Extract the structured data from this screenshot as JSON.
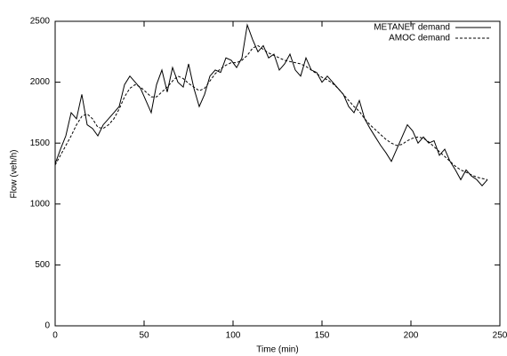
{
  "chart_data": {
    "type": "line",
    "xlabel": "Time (min)",
    "ylabel": "Flow (veh/h)",
    "x": [
      0,
      3,
      6,
      9,
      12,
      15,
      18,
      21,
      24,
      27,
      30,
      33,
      36,
      39,
      42,
      45,
      48,
      51,
      54,
      57,
      60,
      63,
      66,
      69,
      72,
      75,
      78,
      81,
      84,
      87,
      90,
      93,
      96,
      99,
      102,
      105,
      108,
      111,
      114,
      117,
      120,
      123,
      126,
      129,
      132,
      135,
      138,
      141,
      144,
      147,
      150,
      153,
      156,
      159,
      162,
      165,
      168,
      171,
      174,
      177,
      180,
      183,
      186,
      189,
      192,
      195,
      198,
      201,
      204,
      207,
      210,
      213,
      216,
      219,
      222,
      225,
      228,
      231,
      234,
      237,
      240,
      243
    ],
    "series": [
      {
        "name": "METANET demand",
        "color": "#000000",
        "line_style": "solid",
        "values": [
          1330,
          1450,
          1560,
          1750,
          1700,
          1900,
          1650,
          1620,
          1560,
          1650,
          1700,
          1750,
          1800,
          1980,
          2050,
          2000,
          1950,
          1850,
          1750,
          1980,
          2100,
          1920,
          2120,
          2000,
          1960,
          2150,
          1950,
          1800,
          1900,
          2050,
          2100,
          2080,
          2200,
          2180,
          2120,
          2200,
          2470,
          2350,
          2250,
          2300,
          2200,
          2230,
          2100,
          2150,
          2230,
          2100,
          2050,
          2200,
          2100,
          2080,
          2000,
          2050,
          2000,
          1950,
          1900,
          1800,
          1750,
          1850,
          1700,
          1620,
          1550,
          1480,
          1420,
          1350,
          1450,
          1550,
          1650,
          1600,
          1500,
          1550,
          1500,
          1520,
          1400,
          1450,
          1350,
          1280,
          1200,
          1280,
          1230,
          1200,
          1150,
          1200
        ]
      },
      {
        "name": "AMOC demand",
        "color": "#000000",
        "line_style": "dashed",
        "values": [
          1320,
          1400,
          1480,
          1560,
          1650,
          1720,
          1740,
          1700,
          1630,
          1620,
          1650,
          1700,
          1780,
          1880,
          1950,
          1980,
          1960,
          1920,
          1880,
          1880,
          1920,
          1960,
          2010,
          2050,
          2030,
          1990,
          1960,
          1930,
          1950,
          2010,
          2070,
          2110,
          2140,
          2160,
          2160,
          2180,
          2220,
          2280,
          2300,
          2270,
          2240,
          2220,
          2200,
          2180,
          2170,
          2160,
          2150,
          2130,
          2100,
          2070,
          2040,
          2020,
          1990,
          1950,
          1900,
          1850,
          1800,
          1760,
          1700,
          1650,
          1610,
          1570,
          1530,
          1500,
          1480,
          1490,
          1520,
          1540,
          1550,
          1540,
          1510,
          1470,
          1430,
          1390,
          1350,
          1310,
          1280,
          1260,
          1240,
          1220,
          1210,
          1200
        ]
      }
    ],
    "xlim": [
      0,
      250
    ],
    "xticks": [
      0,
      50,
      100,
      150,
      200,
      250
    ],
    "ylim": [
      0,
      2500
    ],
    "yticks": [
      0,
      500,
      1000,
      1500,
      2000,
      2500
    ],
    "grid": false,
    "legend": "top-right"
  }
}
